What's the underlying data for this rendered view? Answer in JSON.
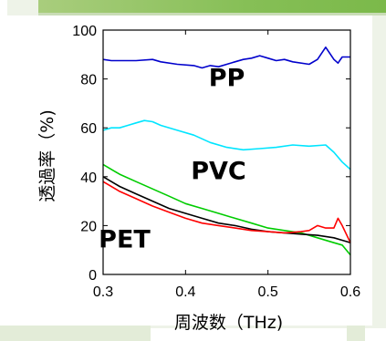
{
  "chart_data": {
    "type": "line",
    "xlabel": "周波数（THz)",
    "ylabel": "透過率（%)",
    "xlim": [
      0.3,
      0.6
    ],
    "ylim": [
      0,
      100
    ],
    "x_ticks": [
      "0.3",
      "0.4",
      "0.5",
      "0.6"
    ],
    "y_ticks": [
      "0",
      "20",
      "40",
      "60",
      "80",
      "100"
    ],
    "grid": false,
    "series": [
      {
        "name": "PP",
        "color": "#0000cc",
        "points": [
          [
            0.3,
            88
          ],
          [
            0.31,
            87.5
          ],
          [
            0.32,
            87.5
          ],
          [
            0.34,
            87.5
          ],
          [
            0.36,
            88
          ],
          [
            0.37,
            87
          ],
          [
            0.39,
            86
          ],
          [
            0.41,
            85.5
          ],
          [
            0.42,
            84.5
          ],
          [
            0.43,
            85.5
          ],
          [
            0.44,
            85
          ],
          [
            0.45,
            86
          ],
          [
            0.46,
            87
          ],
          [
            0.47,
            88
          ],
          [
            0.48,
            88.5
          ],
          [
            0.49,
            89.5
          ],
          [
            0.5,
            88.5
          ],
          [
            0.51,
            87.5
          ],
          [
            0.52,
            88
          ],
          [
            0.53,
            87
          ],
          [
            0.55,
            86
          ],
          [
            0.56,
            88
          ],
          [
            0.57,
            93
          ],
          [
            0.58,
            88
          ],
          [
            0.585,
            86.5
          ],
          [
            0.59,
            89
          ],
          [
            0.6,
            89
          ]
        ]
      },
      {
        "name": "PVC",
        "color": "#00e5ff",
        "points": [
          [
            0.3,
            59
          ],
          [
            0.31,
            60
          ],
          [
            0.32,
            60
          ],
          [
            0.33,
            61
          ],
          [
            0.34,
            62
          ],
          [
            0.35,
            63
          ],
          [
            0.36,
            62.5
          ],
          [
            0.37,
            61
          ],
          [
            0.39,
            59
          ],
          [
            0.41,
            57
          ],
          [
            0.43,
            54
          ],
          [
            0.45,
            52
          ],
          [
            0.47,
            51
          ],
          [
            0.49,
            51.5
          ],
          [
            0.51,
            52
          ],
          [
            0.53,
            53
          ],
          [
            0.55,
            52.5
          ],
          [
            0.57,
            53
          ],
          [
            0.58,
            50
          ],
          [
            0.59,
            46
          ],
          [
            0.6,
            43
          ]
        ]
      },
      {
        "name": "",
        "color": "#00cc00",
        "points": [
          [
            0.3,
            45
          ],
          [
            0.32,
            41
          ],
          [
            0.34,
            38
          ],
          [
            0.36,
            35
          ],
          [
            0.38,
            32
          ],
          [
            0.4,
            29
          ],
          [
            0.42,
            27
          ],
          [
            0.44,
            25
          ],
          [
            0.46,
            23
          ],
          [
            0.48,
            21
          ],
          [
            0.5,
            19
          ],
          [
            0.52,
            18
          ],
          [
            0.54,
            17
          ],
          [
            0.56,
            15
          ],
          [
            0.58,
            13
          ],
          [
            0.59,
            12
          ],
          [
            0.6,
            8
          ]
        ]
      },
      {
        "name": "",
        "color": "#000000",
        "points": [
          [
            0.3,
            40
          ],
          [
            0.32,
            36
          ],
          [
            0.34,
            33
          ],
          [
            0.36,
            30
          ],
          [
            0.38,
            27
          ],
          [
            0.4,
            25
          ],
          [
            0.42,
            23
          ],
          [
            0.44,
            21
          ],
          [
            0.46,
            20
          ],
          [
            0.48,
            18.5
          ],
          [
            0.5,
            17.5
          ],
          [
            0.52,
            17
          ],
          [
            0.54,
            16.5
          ],
          [
            0.56,
            16
          ],
          [
            0.58,
            15
          ],
          [
            0.59,
            14
          ],
          [
            0.6,
            13
          ]
        ]
      },
      {
        "name": "PET",
        "color": "#ff0000",
        "points": [
          [
            0.3,
            38
          ],
          [
            0.32,
            34
          ],
          [
            0.34,
            31
          ],
          [
            0.36,
            28
          ],
          [
            0.38,
            25.5
          ],
          [
            0.4,
            23
          ],
          [
            0.42,
            21
          ],
          [
            0.44,
            20
          ],
          [
            0.46,
            19
          ],
          [
            0.48,
            18
          ],
          [
            0.5,
            17.5
          ],
          [
            0.52,
            17
          ],
          [
            0.54,
            17.5
          ],
          [
            0.55,
            18
          ],
          [
            0.56,
            20
          ],
          [
            0.57,
            19
          ],
          [
            0.58,
            19
          ],
          [
            0.585,
            23
          ],
          [
            0.59,
            20
          ],
          [
            0.6,
            13
          ]
        ]
      }
    ],
    "labels": [
      {
        "text": "PP",
        "x": 0.45,
        "y": 77
      },
      {
        "text": "PVC",
        "x": 0.44,
        "y": 39
      },
      {
        "text": "PET",
        "x": 0.326,
        "y": 11
      }
    ]
  }
}
